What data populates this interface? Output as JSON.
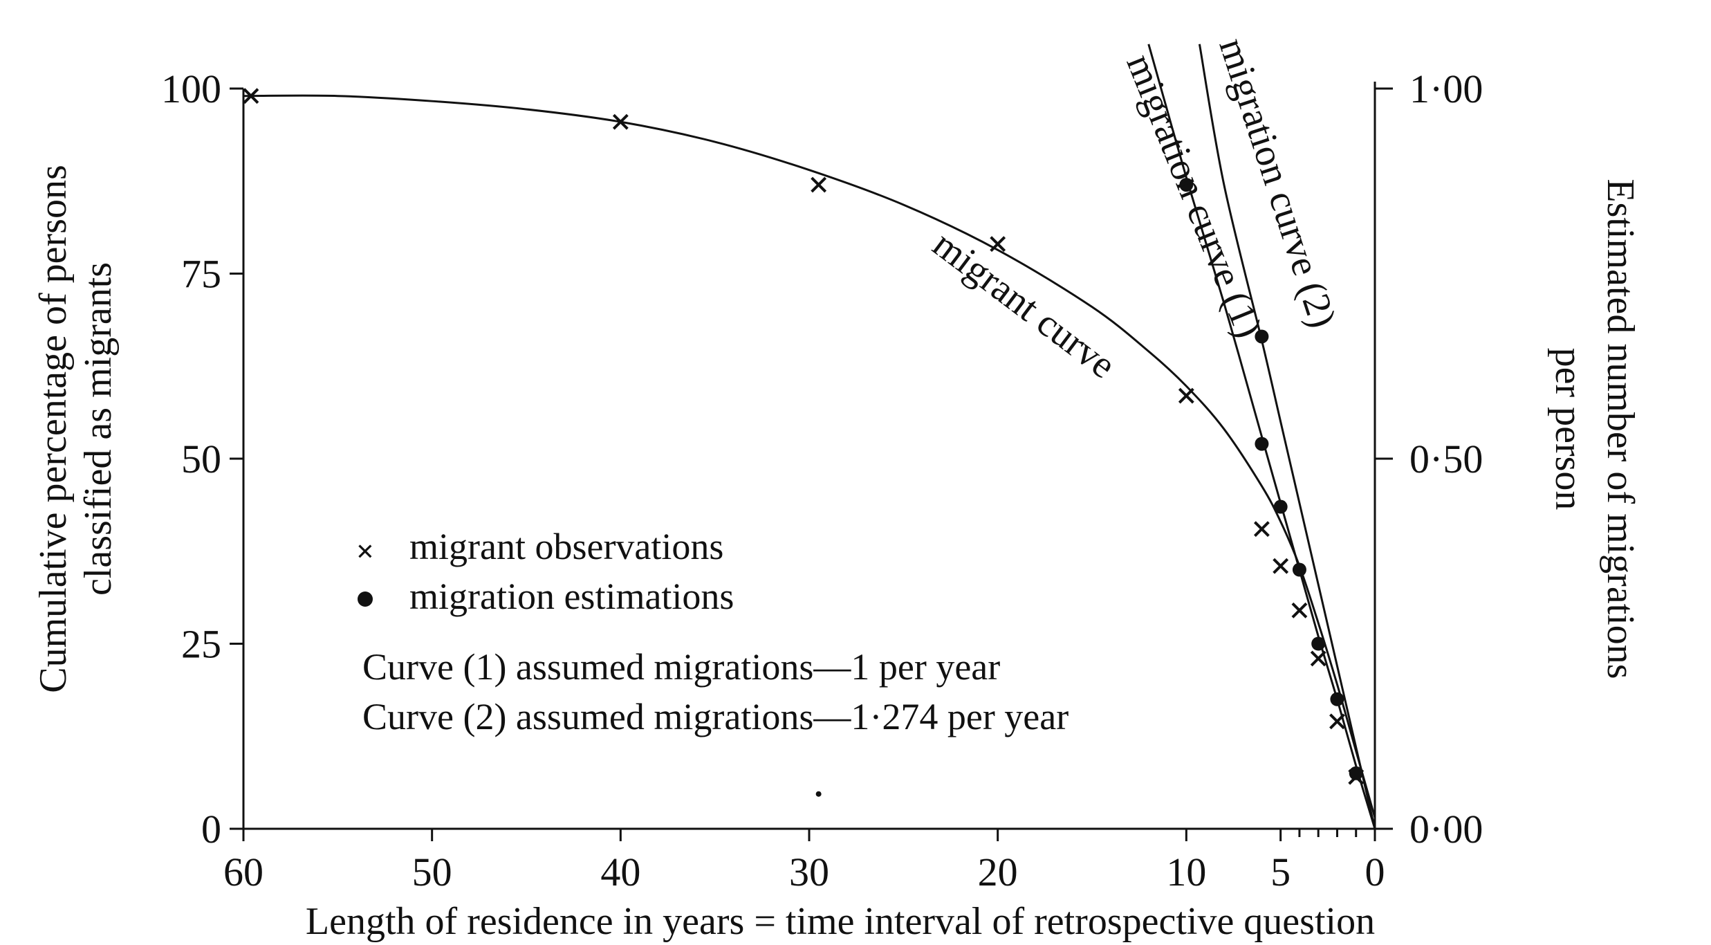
{
  "chart_data": {
    "type": "line",
    "title": "",
    "xlabel": "Length of residence in years = time interval of retrospective question",
    "ylabel_left": [
      "Cumulative percentage of persons",
      "classified as migrants"
    ],
    "ylabel_right": [
      "Estimated number of migrations",
      "per person"
    ],
    "xlim": [
      60,
      0
    ],
    "ylim_left": [
      0,
      100
    ],
    "ylim_right": [
      0,
      1
    ],
    "x_ticks": [
      {
        "value": 60,
        "label": "60"
      },
      {
        "value": 50,
        "label": "50"
      },
      {
        "value": 40,
        "label": "40"
      },
      {
        "value": 30,
        "label": "30"
      },
      {
        "value": 20,
        "label": "20"
      },
      {
        "value": 10,
        "label": "10"
      },
      {
        "value": 5,
        "label": "5"
      },
      {
        "value": 0,
        "label": "0"
      }
    ],
    "x_minor_ticks": [
      4,
      3,
      2,
      1
    ],
    "y_left_ticks": [
      {
        "value": 0,
        "label": "0"
      },
      {
        "value": 25,
        "label": "25"
      },
      {
        "value": 50,
        "label": "50"
      },
      {
        "value": 75,
        "label": "75"
      },
      {
        "value": 100,
        "label": "100"
      }
    ],
    "y_right_ticks": [
      {
        "value": 0,
        "label": "0·00"
      },
      {
        "value": 0.5,
        "label": "0·50"
      },
      {
        "value": 1,
        "label": "1·00"
      }
    ],
    "series": [
      {
        "name": "migrant observations",
        "marker": "x",
        "axis": "left",
        "points": [
          {
            "x": 59.6,
            "y": 99
          },
          {
            "x": 40,
            "y": 95.5
          },
          {
            "x": 29.5,
            "y": 87
          },
          {
            "x": 20,
            "y": 79
          },
          {
            "x": 10,
            "y": 58.5
          },
          {
            "x": 6,
            "y": 40.5
          },
          {
            "x": 5,
            "y": 35.5
          },
          {
            "x": 4,
            "y": 29.5
          },
          {
            "x": 3,
            "y": 23
          },
          {
            "x": 2,
            "y": 14.5
          },
          {
            "x": 1,
            "y": 7
          }
        ]
      },
      {
        "name": "migration estimations",
        "marker": "dot",
        "axis": "left",
        "points": [
          {
            "x": 10,
            "y": 87
          },
          {
            "x": 6,
            "y": 66.5
          },
          {
            "x": 6,
            "y": 52
          },
          {
            "x": 5,
            "y": 43.5
          },
          {
            "x": 4,
            "y": 35
          },
          {
            "x": 3,
            "y": 25
          },
          {
            "x": 2,
            "y": 17.5
          },
          {
            "x": 1,
            "y": 7.5
          }
        ]
      },
      {
        "name": "migrant curve",
        "label": "migrant curve",
        "style": "curve",
        "axis": "left",
        "points": [
          {
            "x": 60,
            "y": 99
          },
          {
            "x": 55,
            "y": 99
          },
          {
            "x": 50,
            "y": 98.3
          },
          {
            "x": 45,
            "y": 97.2
          },
          {
            "x": 40,
            "y": 95.5
          },
          {
            "x": 35,
            "y": 92.8
          },
          {
            "x": 30,
            "y": 89
          },
          {
            "x": 25,
            "y": 84.3
          },
          {
            "x": 20,
            "y": 78.2
          },
          {
            "x": 15,
            "y": 70.5
          },
          {
            "x": 12,
            "y": 64.5
          },
          {
            "x": 10,
            "y": 59.8
          },
          {
            "x": 8,
            "y": 54
          },
          {
            "x": 6,
            "y": 46.3
          },
          {
            "x": 5,
            "y": 41.5
          },
          {
            "x": 4,
            "y": 35.5
          },
          {
            "x": 3,
            "y": 27.8
          },
          {
            "x": 2,
            "y": 19.5
          },
          {
            "x": 1,
            "y": 10.5
          },
          {
            "x": 0,
            "y": 1.5
          }
        ]
      },
      {
        "name": "migration curve (1)",
        "label": "migration curve (1)",
        "style": "curve",
        "axis": "left",
        "points": [
          {
            "x": 12,
            "y": 106
          },
          {
            "x": 10,
            "y": 88
          },
          {
            "x": 8,
            "y": 71
          },
          {
            "x": 6,
            "y": 53
          },
          {
            "x": 5,
            "y": 44
          },
          {
            "x": 4,
            "y": 35
          },
          {
            "x": 3,
            "y": 26
          },
          {
            "x": 2,
            "y": 17.5
          },
          {
            "x": 1,
            "y": 8.5
          },
          {
            "x": 0,
            "y": 0
          }
        ]
      },
      {
        "name": "migration curve (2)",
        "label": "migration curve (2)",
        "style": "curve",
        "axis": "left",
        "points": [
          {
            "x": 9.3,
            "y": 106
          },
          {
            "x": 8,
            "y": 87
          },
          {
            "x": 6,
            "y": 66
          },
          {
            "x": 5,
            "y": 55
          },
          {
            "x": 4,
            "y": 44
          },
          {
            "x": 3,
            "y": 33
          },
          {
            "x": 2,
            "y": 22
          },
          {
            "x": 1,
            "y": 11
          },
          {
            "x": 0,
            "y": 0
          }
        ]
      }
    ],
    "stray_mark": {
      "x": 29.5,
      "y": 4.7
    },
    "legend": {
      "placement": "center-left inside plot",
      "entries": [
        {
          "marker": "x",
          "text": "migrant observations"
        },
        {
          "marker": "dot",
          "text": "migration estimations"
        }
      ],
      "notes": [
        "Curve (1) assumed migrations—1 per year",
        "Curve (2) assumed migrations—1·274 per year"
      ]
    },
    "grid": false
  }
}
